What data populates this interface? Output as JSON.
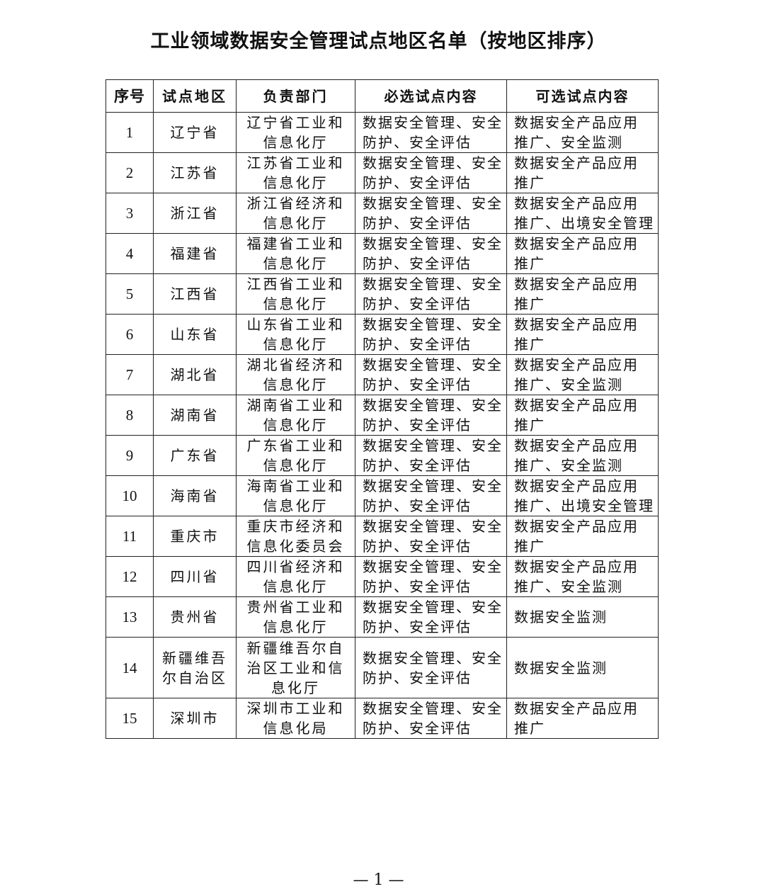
{
  "title": "工业领域数据安全管理试点地区名单（按地区排序）",
  "headers": [
    "序号",
    "试点地区",
    "负责部门",
    "必选试点内容",
    "可选试点内容"
  ],
  "rows": [
    {
      "no": "1",
      "region": "辽宁省",
      "dept": "辽宁省工业和\n信息化厅",
      "required": "数据安全管理、安全\n防护、安全评估",
      "optional": "数据安全产品应用\n推广、安全监测"
    },
    {
      "no": "2",
      "region": "江苏省",
      "dept": "江苏省工业和\n信息化厅",
      "required": "数据安全管理、安全\n防护、安全评估",
      "optional": "数据安全产品应用\n推广"
    },
    {
      "no": "3",
      "region": "浙江省",
      "dept": "浙江省经济和\n信息化厅",
      "required": "数据安全管理、安全\n防护、安全评估",
      "optional": "数据安全产品应用\n推广、出境安全管理"
    },
    {
      "no": "4",
      "region": "福建省",
      "dept": "福建省工业和\n信息化厅",
      "required": "数据安全管理、安全\n防护、安全评估",
      "optional": "数据安全产品应用\n推广"
    },
    {
      "no": "5",
      "region": "江西省",
      "dept": "江西省工业和\n信息化厅",
      "required": "数据安全管理、安全\n防护、安全评估",
      "optional": "数据安全产品应用\n推广"
    },
    {
      "no": "6",
      "region": "山东省",
      "dept": "山东省工业和\n信息化厅",
      "required": "数据安全管理、安全\n防护、安全评估",
      "optional": "数据安全产品应用\n推广"
    },
    {
      "no": "7",
      "region": "湖北省",
      "dept": "湖北省经济和\n信息化厅",
      "required": "数据安全管理、安全\n防护、安全评估",
      "optional": "数据安全产品应用\n推广、安全监测"
    },
    {
      "no": "8",
      "region": "湖南省",
      "dept": "湖南省工业和\n信息化厅",
      "required": "数据安全管理、安全\n防护、安全评估",
      "optional": "数据安全产品应用\n推广"
    },
    {
      "no": "9",
      "region": "广东省",
      "dept": "广东省工业和\n信息化厅",
      "required": "数据安全管理、安全\n防护、安全评估",
      "optional": "数据安全产品应用\n推广、安全监测"
    },
    {
      "no": "10",
      "region": "海南省",
      "dept": "海南省工业和\n信息化厅",
      "required": "数据安全管理、安全\n防护、安全评估",
      "optional": "数据安全产品应用\n推广、出境安全管理"
    },
    {
      "no": "11",
      "region": "重庆市",
      "dept": "重庆市经济和\n信息化委员会",
      "required": "数据安全管理、安全\n防护、安全评估",
      "optional": "数据安全产品应用\n推广"
    },
    {
      "no": "12",
      "region": "四川省",
      "dept": "四川省经济和\n信息化厅",
      "required": "数据安全管理、安全\n防护、安全评估",
      "optional": "数据安全产品应用\n推广、安全监测"
    },
    {
      "no": "13",
      "region": "贵州省",
      "dept": "贵州省工业和\n信息化厅",
      "required": "数据安全管理、安全\n防护、安全评估",
      "optional": "数据安全监测"
    },
    {
      "no": "14",
      "region": "新疆维吾\n尔自治区",
      "dept": "新疆维吾尔自\n治区工业和信\n息化厅",
      "required": "数据安全管理、安全\n防护、安全评估",
      "optional": "数据安全监测"
    },
    {
      "no": "15",
      "region": "深圳市",
      "dept": "深圳市工业和\n信息化局",
      "required": "数据安全管理、安全\n防护、安全评估",
      "optional": "数据安全产品应用\n推广"
    }
  ],
  "page_number": "— 1 —"
}
